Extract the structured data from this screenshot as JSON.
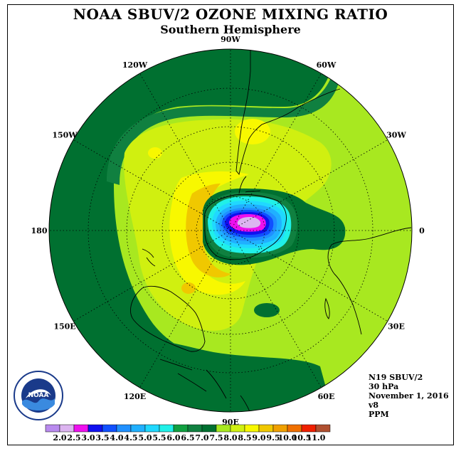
{
  "title": "NOAA SBUV/2 OZONE MIXING RATIO",
  "subtitle": "Southern Hemisphere",
  "longitudes": [
    "90W",
    "60W",
    "30W",
    "0",
    "30E",
    "60E",
    "90E",
    "120E",
    "150E",
    "180",
    "150W",
    "120W"
  ],
  "info": {
    "satellite": "N19 SBUV/2",
    "level": "30 hPa",
    "date": "November 1, 2016",
    "version": "v8",
    "units": "PPM"
  },
  "logo_text": "NOAA",
  "colorbar": {
    "labels": [
      "2.0",
      "2.5",
      "3.0",
      "3.5",
      "4.0",
      "4.5",
      "5.0",
      "5.5",
      "6.0",
      "6.5",
      "7.0",
      "7.5",
      "8.0",
      "8.5",
      "9.0",
      "9.5",
      "10.0",
      "10.5",
      "11.0"
    ],
    "colors": [
      "#b98aee",
      "#dcb4f0",
      "#ee10ee",
      "#1010f0",
      "#1050ff",
      "#2090ff",
      "#20b0ff",
      "#20d8ff",
      "#20f0e8",
      "#10a040",
      "#108040",
      "#007030",
      "#a8e820",
      "#d0f010",
      "#f8f800",
      "#f0c800",
      "#f0a000",
      "#f07000",
      "#f02000",
      "#b05030"
    ]
  },
  "colors": {
    "dark_green": "#007030",
    "green": "#108040",
    "lime": "#a8e820",
    "yellow_green": "#d0f010",
    "yellow": "#f8f800",
    "gold": "#f0c800",
    "coast": "#000000"
  }
}
